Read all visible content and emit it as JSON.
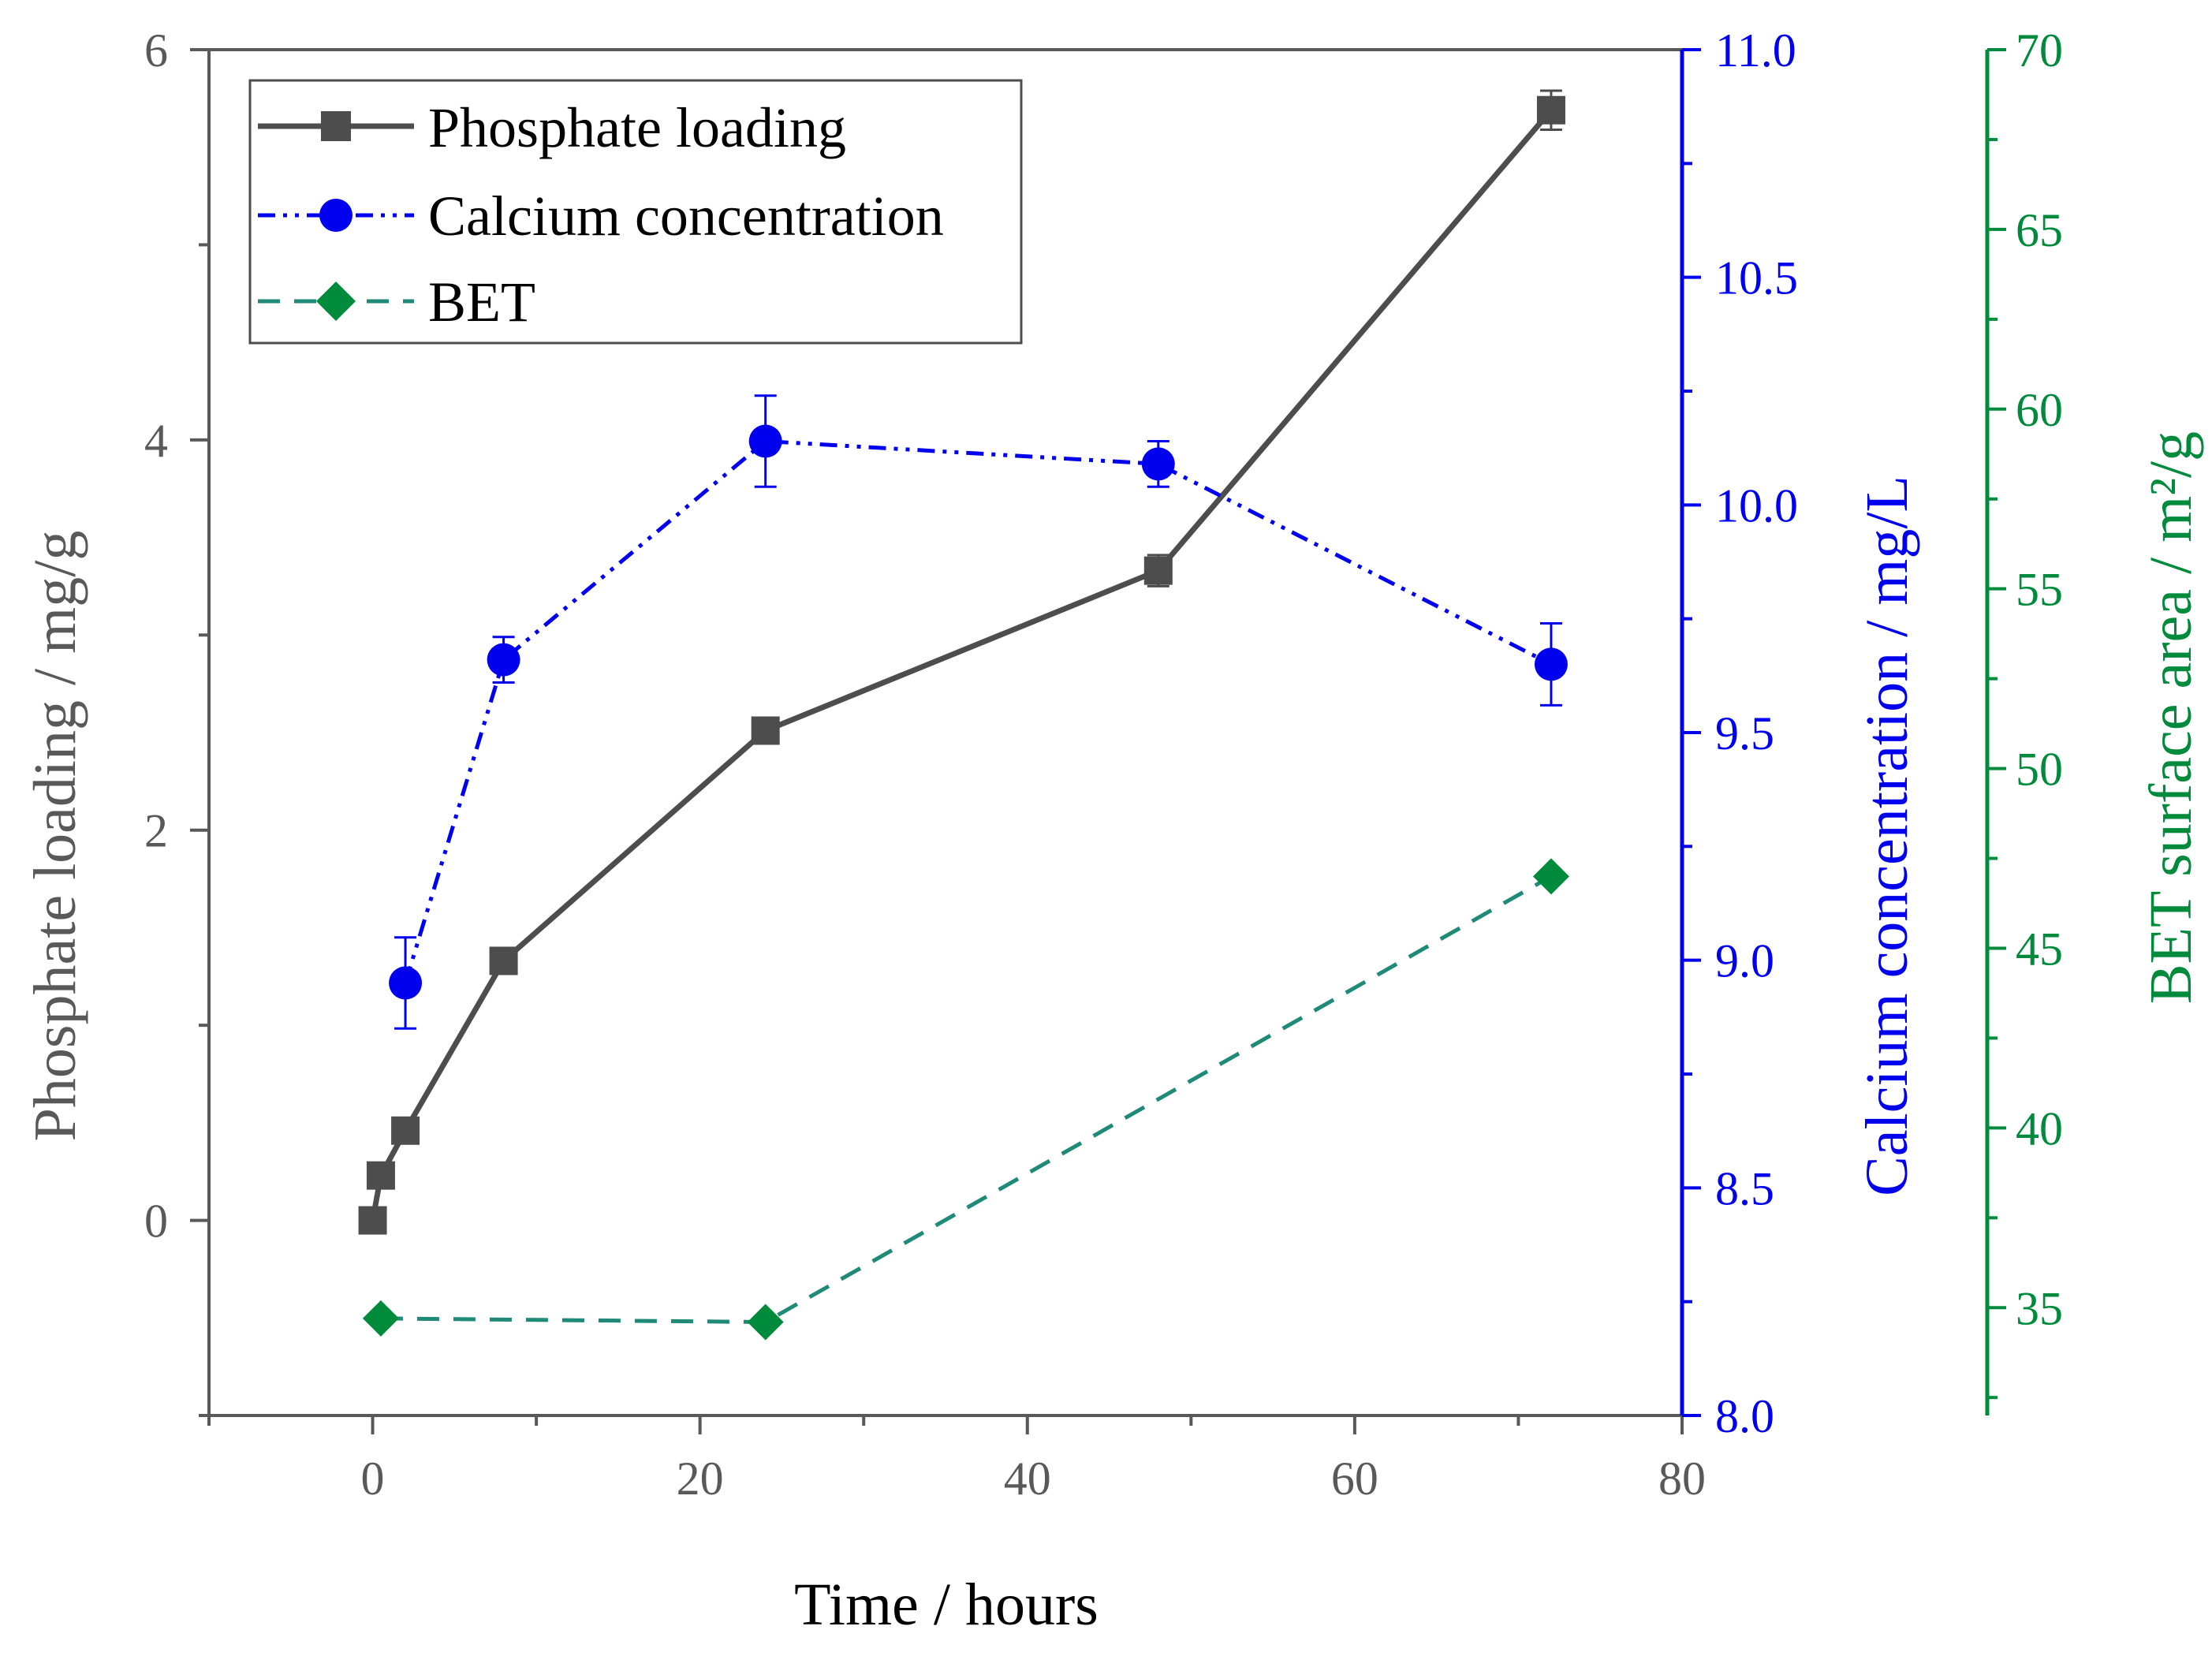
{
  "chart_data": {
    "type": "line",
    "title": "",
    "xlabel": "Time / hours",
    "xlim": [
      -10,
      80
    ],
    "x_ticks": [
      "0",
      "20",
      "40",
      "60",
      "80"
    ],
    "axes": [
      {
        "id": "phosphate",
        "label": "Phosphate loading / mg/g",
        "color": "#595959",
        "lim": [
          -1,
          6
        ],
        "ticks": [
          "0",
          "2",
          "4",
          "6"
        ]
      },
      {
        "id": "calcium",
        "label": "Calcium concentration / mg/L",
        "color": "#0000ee",
        "lim": [
          8.0,
          11.0
        ],
        "ticks": [
          "8.0",
          "8.5",
          "9.0",
          "9.5",
          "10.0",
          "10.5",
          "11.0"
        ]
      },
      {
        "id": "bet",
        "label": "BET surface area / m²/g",
        "color": "#008a3c",
        "lim": [
          32,
          70
        ],
        "ticks": [
          "35",
          "40",
          "45",
          "50",
          "55",
          "60",
          "65",
          "70"
        ]
      }
    ],
    "series": [
      {
        "name": "Phosphate loading",
        "axis": "phosphate",
        "color": "#4d4d4d",
        "marker": "square",
        "line": "solid",
        "x": [
          0,
          0.5,
          2,
          8,
          24,
          48,
          72
        ],
        "y": [
          0.0,
          0.23,
          0.46,
          1.33,
          2.51,
          3.33,
          5.69
        ],
        "err": [
          0,
          0,
          0,
          0,
          0,
          0.08,
          0.1
        ]
      },
      {
        "name": "Calcium concentration",
        "axis": "calcium",
        "color": "#0000ee",
        "marker": "circle",
        "line": "dashdotdot",
        "x": [
          2,
          8,
          24,
          48,
          72
        ],
        "y": [
          8.95,
          9.66,
          10.14,
          10.09,
          9.65
        ],
        "err": [
          0.1,
          0.05,
          0.1,
          0.05,
          0.09
        ]
      },
      {
        "name": "BET",
        "axis": "bet",
        "color": "#008a3c",
        "line_color": "#1f8a78",
        "marker": "diamond",
        "line": "dashed",
        "x": [
          0.5,
          24,
          72
        ],
        "y": [
          34.7,
          34.6,
          47.0
        ],
        "err": [
          0,
          0,
          0
        ]
      }
    ],
    "legend": {
      "position": "top-left"
    }
  }
}
